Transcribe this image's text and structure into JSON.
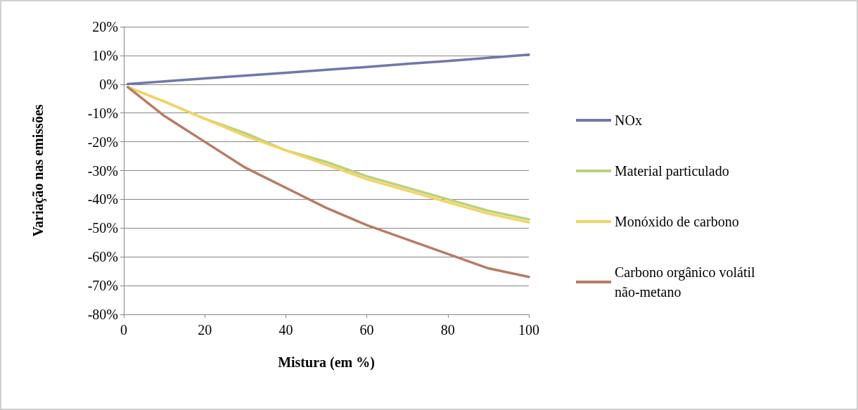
{
  "chart_data": {
    "type": "line",
    "xlabel": "Mistura (em %)",
    "ylabel": "Variação nas emissões",
    "x": [
      1,
      10,
      20,
      30,
      40,
      50,
      60,
      70,
      80,
      90,
      100
    ],
    "xlim": [
      0,
      100
    ],
    "xticks": [
      0,
      20,
      40,
      60,
      80,
      100
    ],
    "ylim": [
      -80,
      20
    ],
    "yticks": [
      {
        "value": -80,
        "label": "-80%"
      },
      {
        "value": -70,
        "label": "-70%"
      },
      {
        "value": -60,
        "label": "-60%"
      },
      {
        "value": -50,
        "label": "-50%"
      },
      {
        "value": -40,
        "label": "-40%"
      },
      {
        "value": -30,
        "label": "-30%"
      },
      {
        "value": -20,
        "label": "-20%"
      },
      {
        "value": -10,
        "label": "-10%"
      },
      {
        "value": 0,
        "label": "0%"
      },
      {
        "value": 10,
        "label": "10%"
      },
      {
        "value": 20,
        "label": "20%"
      }
    ],
    "grid": "y",
    "legend": "right",
    "marker": "none",
    "line_style": "solid",
    "series": [
      {
        "name": "NOx",
        "color": "#6f78aa",
        "values": [
          0.1,
          1,
          2,
          3,
          4,
          5,
          6,
          7.1,
          8.1,
          9.2,
          10.3
        ]
      },
      {
        "name": "Material particulado",
        "color": "#b8d27a",
        "values": [
          -1,
          -6,
          -12,
          -17,
          -23,
          -27,
          -32,
          -36,
          -40,
          -44,
          -47
        ]
      },
      {
        "name": "Monóxido de carbono",
        "color": "#f6d263",
        "values": [
          -1,
          -6,
          -12,
          -18,
          -23,
          -28,
          -33,
          -37,
          -41,
          -45,
          -48
        ]
      },
      {
        "name": "Carbono orgânico volátil não-metano",
        "color": "#b87c63",
        "values": [
          -1,
          -11,
          -20,
          -29,
          -36,
          -43,
          -49,
          -54,
          -59,
          -64,
          -67
        ]
      }
    ]
  }
}
